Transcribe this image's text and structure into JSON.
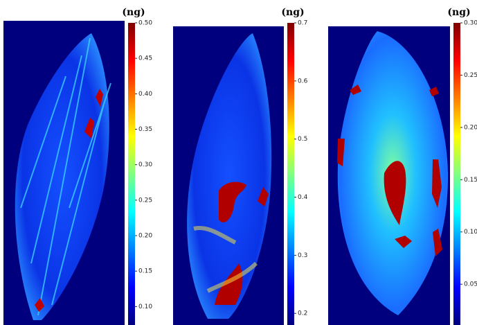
{
  "chart_data": [
    {
      "type": "heatmap",
      "colorbar_label": "(ng)",
      "colormap": "jet",
      "clim": [
        0.074,
        0.5
      ],
      "cticks": [
        {
          "value": 0.5,
          "label": "0.50"
        },
        0.45,
        {
          "value": 0.4,
          "label": "0.40"
        },
        0.35,
        {
          "value": 0.3,
          "label": "0.30"
        },
        0.25,
        {
          "value": 0.2,
          "label": "0.20"
        },
        0.15,
        {
          "value": 0.1,
          "label": "0.10"
        }
      ]
    },
    {
      "type": "heatmap",
      "colorbar_label": "(ng)",
      "colormap": "jet",
      "clim": [
        0.18,
        0.7
      ],
      "cticks": [
        0.7,
        0.6,
        0.5,
        0.4,
        0.3,
        0.2
      ]
    },
    {
      "type": "heatmap",
      "colorbar_label": "(ng)",
      "colormap": "jet",
      "clim": [
        0.011,
        0.3
      ],
      "cticks": [
        {
          "value": 0.3,
          "label": "0.30"
        },
        0.25,
        {
          "value": 0.2,
          "label": "0.20"
        },
        0.15,
        {
          "value": 0.1,
          "label": "0.10"
        },
        0.05
      ]
    }
  ]
}
